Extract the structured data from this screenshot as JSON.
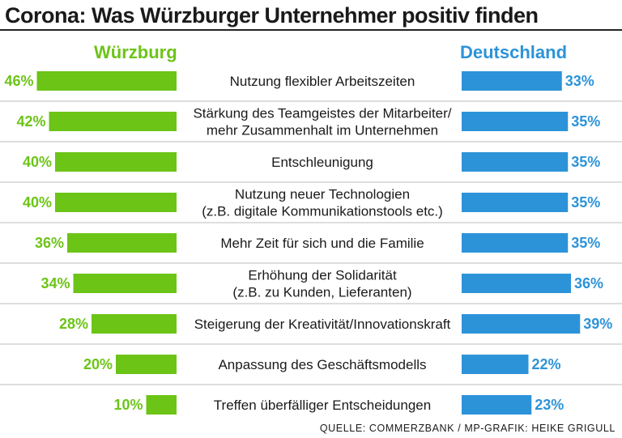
{
  "title": "Corona: Was Würzburger Unternehmer positiv finden",
  "source": "QUELLE: COMMERZBANK / MP-GRAFIK: HEIKE GRIGULL",
  "colors": {
    "green": "#6cc417",
    "blue": "#2c93d8",
    "separator": "#bdbdbd"
  },
  "chart_data": {
    "type": "bar",
    "title": "Corona: Was Würzburger Unternehmer positiv finden",
    "categories": [
      [
        "Nutzung flexibler Arbeitszeiten"
      ],
      [
        "Stärkung des Teamgeistes der Mitarbeiter/",
        "mehr Zusammenhalt im Unternehmen"
      ],
      [
        "Entschleunigung"
      ],
      [
        "Nutzung neuer Technologien",
        "(z.B. digitale Kommunikationstools etc.)"
      ],
      [
        "Mehr Zeit für sich und die Familie"
      ],
      [
        "Erhöhung der Solidarität",
        "(z.B. zu Kunden, Lieferanten)"
      ],
      [
        "Steigerung der Kreativität/Innovationskraft"
      ],
      [
        "Anpassung des Geschäftsmodells"
      ],
      [
        "Treffen überfälliger Entscheidungen"
      ]
    ],
    "series": [
      {
        "name": "Würzburg",
        "values": [
          46,
          42,
          40,
          40,
          36,
          34,
          28,
          20,
          10
        ],
        "labels": [
          "46%",
          "42%",
          "40%",
          "40%",
          "36%",
          "34%",
          "28%",
          "20%",
          "10%"
        ]
      },
      {
        "name": "Deutschland",
        "values": [
          33,
          35,
          35,
          35,
          35,
          36,
          39,
          22,
          23
        ],
        "labels": [
          "33%",
          "35%",
          "35%",
          "35%",
          "35%",
          "36%",
          "39%",
          "22%",
          "23%"
        ]
      }
    ],
    "unit": "%",
    "xlim": [
      0,
      46
    ]
  }
}
